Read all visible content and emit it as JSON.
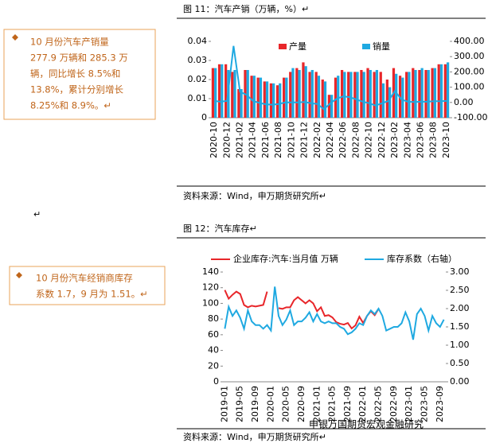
{
  "sidebar": {
    "box1": [
      "10 月份汽车产销量",
      "277.9 万辆和 285.3 万",
      "辆，同比增长 8.5%和",
      "13.8%，累计分别增长",
      "8.25%和 8.9%。↵"
    ],
    "box2": [
      "10 月份汽车经销商库存",
      "系数 1.7，9 月为 1.51。↵"
    ],
    "stray": "↵"
  },
  "figure11": {
    "title": "图 11：汽车产销（万辆，%）↵",
    "source": "资料来源：Wind，申万期货研究所↵",
    "chart_data": {
      "type": "bar",
      "categories": [
        "2020-10",
        null,
        "2020-12",
        null,
        "2021-02",
        null,
        "2021-04",
        null,
        "2021-06",
        null,
        "2021-08",
        null,
        "2021-10",
        null,
        "2021-12",
        null,
        "2022-02",
        null,
        "2022-04",
        null,
        "2022-06",
        null,
        "2022-08",
        null,
        "2022-10",
        null,
        "2022-12",
        null,
        "2023-02",
        null,
        "2023-04",
        null,
        "2023-06",
        null,
        "2023-08",
        null,
        "2023-10"
      ],
      "series": [
        {
          "name": "产量",
          "color": "#e8262a",
          "type": "bar",
          "values": [
            0.026,
            0.028,
            0.028,
            0.024,
            0.015,
            0.025,
            0.022,
            0.021,
            0.019,
            0.018,
            0.017,
            0.021,
            0.024,
            0.026,
            0.029,
            0.024,
            0.024,
            0.02,
            0.012,
            0.021,
            0.025,
            0.024,
            0.024,
            0.025,
            0.026,
            0.024,
            0.024,
            0.02,
            0.026,
            0.022,
            0.024,
            0.026,
            0.025,
            0.025,
            0.026,
            0.028,
            0.028
          ]
        },
        {
          "name": "销量",
          "color": "#1fa9e1",
          "type": "bar",
          "values": [
            0.026,
            0.028,
            0.025,
            0.025,
            0.015,
            0.025,
            0.022,
            0.021,
            0.019,
            0.018,
            0.018,
            0.021,
            0.026,
            0.025,
            0.027,
            0.025,
            0.022,
            0.019,
            0.012,
            0.022,
            0.024,
            0.024,
            0.024,
            0.024,
            0.025,
            0.025,
            0.018,
            0.016,
            0.023,
            0.021,
            0.024,
            0.025,
            0.026,
            0.025,
            0.026,
            0.028,
            0.029
          ]
        },
        {
          "color": "#1fa9e1",
          "type": "line",
          "axis": "y2",
          "values": [
            10,
            5,
            10,
            370,
            70,
            50,
            10,
            -3,
            -12,
            -15,
            -10,
            0,
            0,
            0,
            3,
            -5,
            -10,
            -45,
            -5,
            25,
            40,
            35,
            20,
            5,
            -5,
            -20,
            -5,
            10,
            75,
            20,
            5,
            3,
            5,
            5,
            8,
            8,
            10
          ]
        }
      ],
      "ylim": [
        0,
        0.04
      ],
      "yticks": [
        0,
        0.01,
        0.02,
        0.03,
        0.04
      ],
      "y2lim": [
        -100,
        400
      ],
      "y2ticks": [
        {
          "value": -100,
          "label": "-100.00"
        },
        {
          "value": 0,
          "label": "0.00"
        },
        {
          "value": 100,
          "label": "100.00"
        },
        {
          "value": 200,
          "label": "200.00"
        },
        {
          "value": 300,
          "label": "300.00"
        },
        {
          "value": 400,
          "label": "400.00"
        }
      ]
    }
  },
  "figure12": {
    "title": "图 12：汽车库存↵",
    "source": "资料来源：Wind，申万期货研究所↵",
    "watermark": "申银万国期货宏观金融研究",
    "chart_data": {
      "type": "line",
      "categories": [
        "2019-01",
        null,
        null,
        null,
        "2019-05",
        null,
        null,
        null,
        "2019-09",
        null,
        null,
        null,
        "2020-01",
        null,
        null,
        null,
        "2020-05",
        null,
        null,
        null,
        "2020-09",
        null,
        null,
        null,
        "2021-01",
        null,
        null,
        null,
        "2021-05",
        null,
        null,
        null,
        "2021-09",
        null,
        null,
        null,
        "2022-01",
        null,
        null,
        null,
        "2022-05",
        null,
        null,
        null,
        "2022-09",
        null,
        null,
        null,
        "2023-01",
        null,
        null,
        null,
        "2023-05",
        null,
        null,
        null,
        "2023-09",
        null
      ],
      "series": [
        {
          "name": "企业库存:汽车:当月值 万辆",
          "color": "#e8262a",
          "values": [
            117,
            106,
            111,
            115,
            112,
            98,
            95,
            97,
            96,
            97,
            98,
            115,
            null,
            null,
            94,
            93,
            95,
            95,
            104,
            108,
            104,
            100,
            104,
            100,
            90,
            95,
            84,
            85,
            82,
            76,
            74,
            73,
            75,
            68,
            72,
            83,
            75,
            84,
            90,
            85,
            93,
            null,
            null,
            null,
            null,
            null,
            null,
            null,
            null,
            null,
            null,
            null,
            null,
            null,
            null,
            null,
            null,
            null
          ]
        },
        {
          "name": "库存系数（右轴）",
          "color": "#1fa9e1",
          "axis": "y2",
          "values": [
            1.45,
            2.05,
            1.8,
            1.95,
            1.75,
            1.45,
            1.95,
            1.65,
            1.55,
            1.55,
            1.45,
            1.55,
            1.4,
            2.6,
            1.8,
            1.55,
            1.7,
            1.95,
            1.55,
            1.65,
            1.65,
            1.75,
            1.9,
            1.65,
            1.85,
            1.65,
            1.6,
            1.65,
            1.6,
            1.6,
            1.5,
            1.45,
            1.3,
            1.35,
            1.45,
            1.6,
            1.55,
            1.8,
            1.95,
            1.85,
            2.0,
            1.8,
            1.4,
            1.45,
            1.5,
            1.5,
            1.6,
            1.9,
            1.65,
            1.15,
            1.85,
            2.0,
            1.8,
            1.4,
            1.8,
            1.6,
            1.5,
            1.7
          ]
        }
      ],
      "ylim": [
        0,
        140
      ],
      "yticks": [
        0,
        20,
        40,
        60,
        80,
        100,
        120,
        140
      ],
      "y2lim": [
        0,
        3
      ],
      "y2ticks": [
        {
          "value": 0,
          "label": "0.00"
        },
        {
          "value": 0.5,
          "label": "0.50"
        },
        {
          "value": 1,
          "label": "1.00"
        },
        {
          "value": 1.5,
          "label": "1.50"
        },
        {
          "value": 2,
          "label": "2.00"
        },
        {
          "value": 2.5,
          "label": "2.50"
        },
        {
          "value": 3,
          "label": "3.00"
        }
      ]
    }
  }
}
